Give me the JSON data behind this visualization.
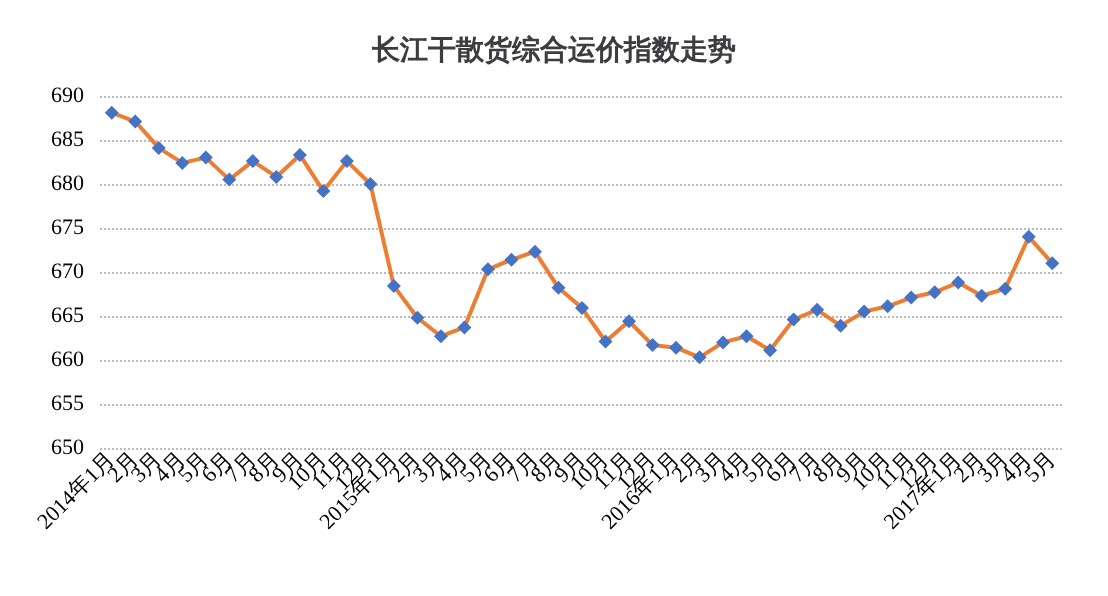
{
  "chart_data": {
    "type": "line",
    "title": "长江干散货综合运价指数走势",
    "categories": [
      "2014年1月",
      "2月",
      "3月",
      "4月",
      "5月",
      "6月",
      "7月",
      "8月",
      "9月",
      "10月",
      "11月",
      "12月",
      "2015年1月",
      "2月",
      "3月",
      "4月",
      "5月",
      "6月",
      "7月",
      "8月",
      "9月",
      "10月",
      "11月",
      "12月",
      "2016年1月",
      "2月",
      "3月",
      "4月",
      "5月",
      "6月",
      "7月",
      "8月",
      "9月",
      "10月",
      "11月",
      "12月",
      "2017年1月",
      "2月",
      "3月",
      "4月",
      "5月"
    ],
    "series": [
      {
        "color": "#ed7d31",
        "colors": [
          "#4472c4",
          "#4472c4",
          "#4472c4",
          "#4472c4",
          "#4472c4",
          "#4472c4",
          "#4472c4",
          "#4472c4",
          "#4472c4",
          "#4472c4",
          "#4472c4",
          "#4472c4",
          "#4472c4",
          "#4472c4",
          "#4472c4",
          "#4472c4",
          "#4472c4",
          "#4472c4",
          "#4472c4",
          "#4472c4",
          "#4472c4",
          "#4472c4",
          "#4472c4",
          "#4472c4",
          "#4472c4",
          "#4472c4",
          "#4472c4",
          "#4472c4",
          "#4472c4",
          "#4472c4",
          "#4472c4",
          "#4472c4",
          "#4472c4",
          "#4472c4",
          "#4472c4",
          "#4472c4",
          "#4472c4",
          "#4472c4",
          "#4472c4",
          "#4472c4",
          "#4472c4"
        ],
        "values": [
          688.1,
          687.1,
          684.1,
          682.4,
          683.0,
          680.5,
          682.6,
          680.8,
          683.3,
          679.2,
          682.6,
          680.0,
          668.4,
          664.8,
          662.7,
          663.7,
          670.3,
          671.4,
          672.3,
          668.2,
          665.9,
          662.1,
          664.4,
          661.7,
          661.4,
          660.3,
          662.0,
          662.7,
          661.1,
          664.6,
          665.7,
          663.9,
          665.5,
          666.1,
          667.1,
          667.7,
          668.8,
          667.3,
          668.1,
          674.0,
          671.0
        ]
      }
    ],
    "ylim": [
      650,
      690
    ],
    "yticks": [
      650,
      655,
      660,
      665,
      670,
      675,
      680,
      685,
      690
    ],
    "grid": "y",
    "marker": "diamond",
    "line_style": "solid"
  }
}
